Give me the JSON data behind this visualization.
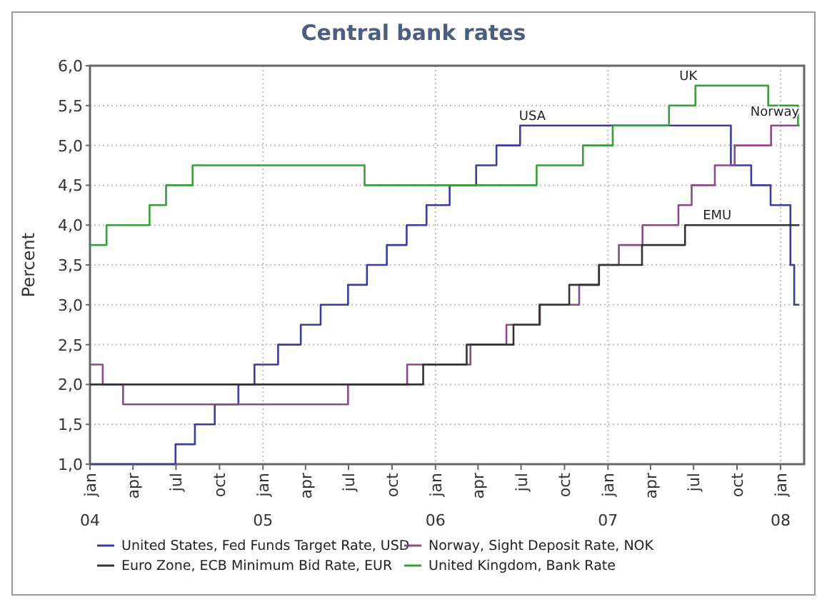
{
  "chart_data": {
    "type": "step",
    "title": "Central bank rates",
    "ylabel": "Percent",
    "xlim": [
      "2004-01-01",
      "2008-02-20"
    ],
    "ylim": [
      1,
      6
    ],
    "yticks": [
      {
        "value": 1,
        "label": "1,0"
      },
      {
        "value": 1.5,
        "label": "1,5"
      },
      {
        "value": 2,
        "label": "2,0"
      },
      {
        "value": 2.5,
        "label": "2,5"
      },
      {
        "value": 3,
        "label": "3,0"
      },
      {
        "value": 3.5,
        "label": "3,5"
      },
      {
        "value": 4,
        "label": "4,0"
      },
      {
        "value": 4.5,
        "label": "4,5"
      },
      {
        "value": 5,
        "label": "5,0"
      },
      {
        "value": 5.5,
        "label": "5,5"
      },
      {
        "value": 6,
        "label": "6,0"
      }
    ],
    "xticks": [
      {
        "value": "2004-01-01",
        "label": "jan\n04"
      },
      {
        "value": "2004-04-01",
        "label": "apr"
      },
      {
        "value": "2004-07-01",
        "label": "jul"
      },
      {
        "value": "2004-10-01",
        "label": "oct"
      },
      {
        "value": "2005-01-01",
        "label": "jan\n05"
      },
      {
        "value": "2005-04-01",
        "label": "apr"
      },
      {
        "value": "2005-07-01",
        "label": "jul"
      },
      {
        "value": "2005-10-01",
        "label": "oct"
      },
      {
        "value": "2006-01-01",
        "label": "jan\n06"
      },
      {
        "value": "2006-04-01",
        "label": "apr"
      },
      {
        "value": "2006-07-01",
        "label": "jul"
      },
      {
        "value": "2006-10-01",
        "label": "oct"
      },
      {
        "value": "2007-01-01",
        "label": "jan\n07"
      },
      {
        "value": "2007-04-01",
        "label": "apr"
      },
      {
        "value": "2007-07-01",
        "label": "jul"
      },
      {
        "value": "2007-10-01",
        "label": "oct"
      },
      {
        "value": "2008-01-01",
        "label": "jan\n08"
      }
    ],
    "grid": true,
    "legend": "bottom",
    "marker": "none",
    "line_style": "solid",
    "series": [
      {
        "name": "United States, Fed Funds Target Rate, USD",
        "color": "#3c3c9c",
        "x": [
          "2004-01-01",
          "2004-06-30",
          "2004-08-10",
          "2004-09-21",
          "2004-11-10",
          "2004-12-14",
          "2005-02-02",
          "2005-03-22",
          "2005-05-03",
          "2005-06-30",
          "2005-08-09",
          "2005-09-20",
          "2005-11-01",
          "2005-12-13",
          "2006-01-31",
          "2006-03-28",
          "2006-05-10",
          "2006-06-29",
          "2007-09-18",
          "2007-10-31",
          "2007-12-11",
          "2008-01-22",
          "2008-01-30",
          "2008-02-10"
        ],
        "values": [
          1,
          1.25,
          1.5,
          1.75,
          2,
          2.25,
          2.5,
          2.75,
          3,
          3.25,
          3.5,
          3.75,
          4,
          4.25,
          4.5,
          4.75,
          5,
          5.25,
          4.75,
          4.5,
          4.25,
          3.5,
          3,
          3
        ]
      },
      {
        "name": "Norway, Sight Deposit Rate, NOK",
        "color": "#8c4a8c",
        "x": [
          "2004-01-01",
          "2004-01-28",
          "2004-03-11",
          "2005-06-30",
          "2005-11-02",
          "2006-03-16",
          "2006-05-31",
          "2006-08-10",
          "2006-11-01",
          "2006-12-13",
          "2007-01-24",
          "2007-03-15",
          "2007-05-30",
          "2007-06-27",
          "2007-08-15",
          "2007-09-26",
          "2007-12-12",
          "2008-02-10"
        ],
        "values": [
          2.25,
          2,
          1.75,
          2,
          2.25,
          2.5,
          2.75,
          3,
          3.25,
          3.5,
          3.75,
          4,
          4.25,
          4.5,
          4.75,
          5,
          5.25,
          5.25
        ]
      },
      {
        "name": "Euro Zone, ECB Minimum Bid Rate, EUR",
        "color": "#333333",
        "x": [
          "2004-01-01",
          "2005-12-06",
          "2006-03-08",
          "2006-06-15",
          "2006-08-09",
          "2006-10-11",
          "2006-12-13",
          "2007-03-14",
          "2007-06-13",
          "2008-02-10"
        ],
        "values": [
          2,
          2.25,
          2.5,
          2.75,
          3,
          3.25,
          3.5,
          3.75,
          4,
          4
        ]
      },
      {
        "name": "United Kingdom, Bank Rate",
        "color": "#3c9c3c",
        "x": [
          "2004-01-01",
          "2004-02-05",
          "2004-05-06",
          "2004-06-10",
          "2004-08-05",
          "2005-08-04",
          "2006-08-03",
          "2006-11-09",
          "2007-01-11",
          "2007-05-10",
          "2007-07-05",
          "2007-12-06",
          "2008-02-07",
          "2008-02-10"
        ],
        "values": [
          3.75,
          4,
          4.25,
          4.5,
          4.75,
          4.5,
          4.75,
          5,
          5.25,
          5.5,
          5.75,
          5.5,
          5.25,
          5.25
        ]
      }
    ],
    "annotations": [
      {
        "text": "USA",
        "x": "2006-07-25",
        "y": 5.25
      },
      {
        "text": "UK",
        "x": "2007-06-20",
        "y": 5.75
      },
      {
        "text": "Norway",
        "x": "2007-12-20",
        "y": 5.3
      },
      {
        "text": "EMU",
        "x": "2007-08-20",
        "y": 4
      }
    ]
  }
}
